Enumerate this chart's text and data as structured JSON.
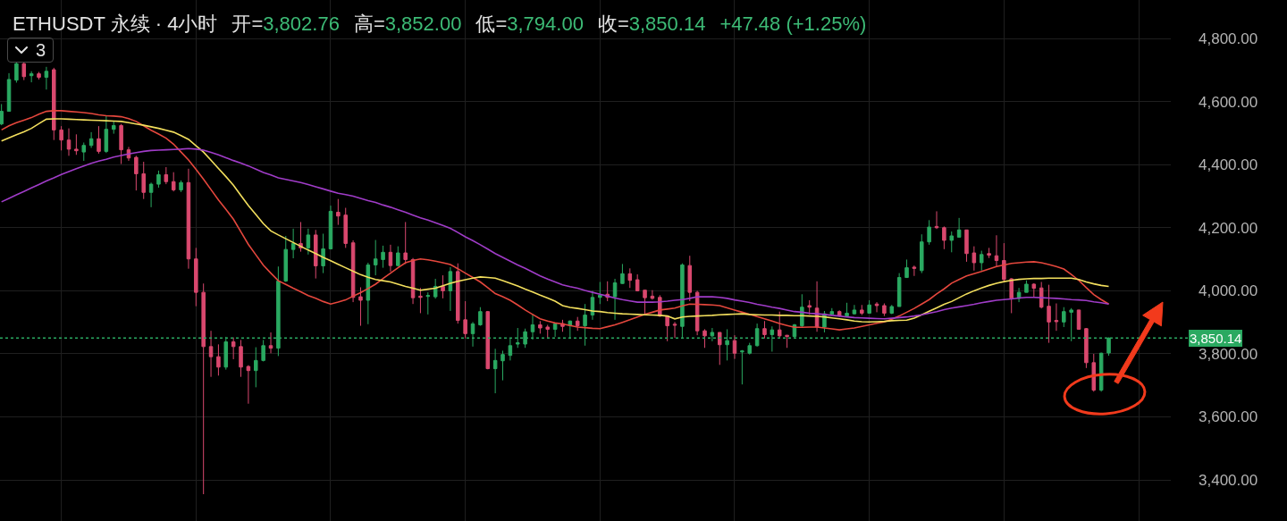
{
  "chart_data": {
    "type": "candlestick",
    "title": "ETHUSDT 永续 · 4小时",
    "annotations": [
      "开=3,802.76",
      "高=3,852.00",
      "低=3,794.00",
      "收=3,850.14",
      "+47.48 (+1.25%)",
      "3"
    ],
    "categories": [
      null,
      null,
      null,
      null,
      null,
      null,
      null,
      null,
      null,
      null,
      null,
      null,
      null,
      null,
      null,
      null,
      null,
      null,
      null,
      null,
      null,
      null,
      null,
      null,
      null,
      null,
      null,
      null,
      null,
      null,
      null,
      null,
      null,
      null,
      null,
      null,
      null,
      null,
      null,
      null,
      null,
      null,
      null,
      null,
      null,
      null,
      null,
      null,
      null,
      null,
      null,
      null,
      null,
      null,
      null,
      null,
      null,
      null,
      null,
      null,
      null,
      null,
      null,
      null,
      null,
      null,
      null,
      null,
      null,
      null,
      null,
      null,
      null,
      null,
      null,
      null,
      null,
      null,
      null,
      null,
      null,
      null,
      null,
      null,
      null,
      null,
      null,
      null,
      null,
      null,
      null,
      null,
      null,
      null,
      null,
      null,
      null,
      null,
      null,
      null,
      null,
      null,
      null,
      null,
      null,
      null,
      null,
      null,
      null,
      null,
      null,
      null,
      null,
      null,
      null,
      null,
      null,
      null,
      null,
      null,
      null,
      null,
      null,
      null,
      null,
      null,
      null,
      null,
      null,
      null,
      null,
      null,
      null,
      null,
      null,
      null,
      null,
      null,
      null,
      null,
      null,
      null,
      null,
      null,
      null,
      null,
      null,
      null,
      null
    ],
    "ohlc": [
      [
        4529,
        4592,
        4525,
        4569
      ],
      [
        4569,
        4690,
        4569,
        4670
      ],
      [
        4668,
        4724,
        4660,
        4720
      ],
      [
        4720,
        4724,
        4668,
        4679
      ],
      [
        4682,
        4696,
        4661,
        4688
      ],
      [
        4688,
        4694,
        4670,
        4677
      ],
      [
        4677,
        4710,
        4638,
        4696
      ],
      [
        4701,
        4707,
        4478,
        4510
      ],
      [
        4510,
        4522,
        4445,
        4478
      ],
      [
        4478,
        4515,
        4428,
        4449
      ],
      [
        4449,
        4496,
        4431,
        4444
      ],
      [
        4440,
        4470,
        4412,
        4461
      ],
      [
        4461,
        4503,
        4453,
        4482
      ],
      [
        4482,
        4522,
        4435,
        4442
      ],
      [
        4442,
        4555,
        4437,
        4512
      ],
      [
        4512,
        4538,
        4498,
        4524
      ],
      [
        4524,
        4529,
        4402,
        4447
      ],
      [
        4447,
        4456,
        4412,
        4421
      ],
      [
        4423,
        4428,
        4318,
        4371
      ],
      [
        4371,
        4409,
        4291,
        4312
      ],
      [
        4312,
        4343,
        4265,
        4338
      ],
      [
        4338,
        4381,
        4327,
        4368
      ],
      [
        4368,
        4392,
        4338,
        4346
      ],
      [
        4346,
        4376,
        4315,
        4320
      ],
      [
        4320,
        4350,
        4313,
        4343
      ],
      [
        4343,
        4387,
        4070,
        4101
      ],
      [
        4101,
        4136,
        3951,
        3995
      ],
      [
        3995,
        4023,
        3355,
        3823
      ],
      [
        3823,
        3873,
        3727,
        3791
      ],
      [
        3791,
        3830,
        3731,
        3758
      ],
      [
        3758,
        3854,
        3750,
        3838
      ],
      [
        3838,
        3852,
        3783,
        3823
      ],
      [
        3823,
        3844,
        3727,
        3758
      ],
      [
        3760,
        3764,
        3642,
        3747
      ],
      [
        3747,
        3821,
        3694,
        3779
      ],
      [
        3779,
        3844,
        3776,
        3826
      ],
      [
        3826,
        3868,
        3802,
        3818
      ],
      [
        3818,
        4077,
        3793,
        4031
      ],
      [
        4031,
        4174,
        4028,
        4131
      ],
      [
        4131,
        4197,
        4103,
        4150
      ],
      [
        4150,
        4218,
        4124,
        4136
      ],
      [
        4136,
        4197,
        4115,
        4177
      ],
      [
        4177,
        4193,
        4039,
        4079
      ],
      [
        4079,
        4181,
        4056,
        4133
      ],
      [
        4133,
        4270,
        4131,
        4252
      ],
      [
        4249,
        4291,
        4209,
        4237
      ],
      [
        4240,
        4263,
        4136,
        4150
      ],
      [
        4152,
        4160,
        3964,
        3979
      ],
      [
        3981,
        4011,
        3889,
        3970
      ],
      [
        3970,
        4089,
        3894,
        4082
      ],
      [
        4082,
        4161,
        4049,
        4101
      ],
      [
        4099,
        4143,
        4073,
        4122
      ],
      [
        4122,
        4146,
        4061,
        4080
      ],
      [
        4080,
        4141,
        4077,
        4120
      ],
      [
        4120,
        4218,
        4085,
        4099
      ],
      [
        4099,
        4104,
        3958,
        3978
      ],
      [
        3983,
        4009,
        3929,
        3979
      ],
      [
        3982,
        3995,
        3925,
        3985
      ],
      [
        3981,
        4038,
        3975,
        4014
      ],
      [
        4014,
        4049,
        3976,
        4000
      ],
      [
        4000,
        4075,
        3936,
        4061
      ],
      [
        4061,
        4087,
        3896,
        3906
      ],
      [
        3908,
        3967,
        3849,
        3864
      ],
      [
        3864,
        3901,
        3823,
        3895
      ],
      [
        3892,
        3948,
        3889,
        3934
      ],
      [
        3934,
        3936,
        3751,
        3753
      ],
      [
        3753,
        3816,
        3675,
        3779
      ],
      [
        3778,
        3810,
        3716,
        3798
      ],
      [
        3795,
        3849,
        3779,
        3826
      ],
      [
        3831,
        3882,
        3819,
        3835
      ],
      [
        3831,
        3880,
        3819,
        3870
      ],
      [
        3870,
        3927,
        3845,
        3892
      ],
      [
        3892,
        3904,
        3864,
        3882
      ],
      [
        3885,
        3892,
        3851,
        3878
      ],
      [
        3878,
        3896,
        3854,
        3895
      ],
      [
        3896,
        3908,
        3870,
        3887
      ],
      [
        3889,
        3906,
        3851,
        3904
      ],
      [
        3904,
        3917,
        3873,
        3889
      ],
      [
        3889,
        3958,
        3826,
        3923
      ],
      [
        3923,
        4000,
        3908,
        3979
      ],
      [
        3979,
        4028,
        3958,
        3986
      ],
      [
        3989,
        4030,
        3967,
        3979
      ],
      [
        3981,
        4038,
        3908,
        4025
      ],
      [
        4023,
        4085,
        4022,
        4054
      ],
      [
        4054,
        4071,
        4009,
        4033
      ],
      [
        4035,
        4052,
        3998,
        4000
      ],
      [
        4002,
        4002,
        3927,
        3978
      ],
      [
        3983,
        4002,
        3972,
        3976
      ],
      [
        3979,
        3986,
        3917,
        3920
      ],
      [
        3920,
        3922,
        3840,
        3889
      ],
      [
        3894,
        3901,
        3851,
        3891
      ],
      [
        3887,
        4087,
        3851,
        4082
      ],
      [
        4080,
        4111,
        3967,
        3995
      ],
      [
        3995,
        4000,
        3859,
        3873
      ],
      [
        3873,
        3878,
        3819,
        3857
      ],
      [
        3857,
        3882,
        3840,
        3868
      ],
      [
        3868,
        3868,
        3765,
        3829
      ],
      [
        3829,
        3878,
        3779,
        3842
      ],
      [
        3842,
        3859,
        3784,
        3802
      ],
      [
        3806,
        3812,
        3703,
        3809
      ],
      [
        3802,
        3835,
        3798,
        3826
      ],
      [
        3826,
        3896,
        3823,
        3880
      ],
      [
        3880,
        3904,
        3849,
        3861
      ],
      [
        3861,
        3887,
        3807,
        3876
      ],
      [
        3876,
        3934,
        3848,
        3857
      ],
      [
        3859,
        3859,
        3819,
        3855
      ],
      [
        3855,
        3895,
        3850,
        3892
      ],
      [
        3889,
        3989,
        3885,
        3948
      ],
      [
        3953,
        3970,
        3925,
        3948
      ],
      [
        3945,
        4030,
        3870,
        3885
      ],
      [
        3885,
        3936,
        3868,
        3927
      ],
      [
        3925,
        3945,
        3923,
        3934
      ],
      [
        3934,
        3938,
        3917,
        3920
      ],
      [
        3920,
        3962,
        3920,
        3929
      ],
      [
        3927,
        3955,
        3925,
        3939
      ],
      [
        3939,
        3955,
        3923,
        3929
      ],
      [
        3929,
        3970,
        3929,
        3955
      ],
      [
        3958,
        3964,
        3932,
        3953
      ],
      [
        3953,
        3960,
        3920,
        3929
      ],
      [
        3929,
        3955,
        3926,
        3950
      ],
      [
        3950,
        4056,
        3950,
        4042
      ],
      [
        4042,
        4099,
        4042,
        4073
      ],
      [
        4075,
        4080,
        4047,
        4071
      ],
      [
        4064,
        4179,
        4056,
        4155
      ],
      [
        4155,
        4224,
        4146,
        4202
      ],
      [
        4204,
        4252,
        4196,
        4200
      ],
      [
        4200,
        4204,
        4132,
        4160
      ],
      [
        4160,
        4188,
        4122,
        4174
      ],
      [
        4170,
        4231,
        4169,
        4193
      ],
      [
        4193,
        4193,
        4092,
        4118
      ],
      [
        4120,
        4141,
        4064,
        4089
      ],
      [
        4089,
        4127,
        4064,
        4115
      ],
      [
        4118,
        4136,
        4104,
        4113
      ],
      [
        4111,
        4176,
        4075,
        4096
      ],
      [
        4096,
        4151,
        4030,
        4036
      ],
      [
        4038,
        4040,
        3929,
        3976
      ],
      [
        3976,
        4009,
        3964,
        3995
      ],
      [
        3995,
        4033,
        3995,
        4021
      ],
      [
        4021,
        4024,
        3981,
        4008
      ],
      [
        4009,
        4028,
        3944,
        3948
      ],
      [
        3951,
        4019,
        3835,
        3901
      ],
      [
        3906,
        3960,
        3873,
        3902
      ],
      [
        3901,
        3948,
        3885,
        3934
      ],
      [
        3932,
        3945,
        3840,
        3939
      ],
      [
        3939,
        3940,
        3876,
        3878
      ],
      [
        3880,
        3882,
        3755,
        3772
      ],
      [
        3772,
        3800,
        3680,
        3685
      ],
      [
        3685,
        3804,
        3680,
        3802
      ],
      [
        3802.76,
        3852.0,
        3794.0,
        3850.14
      ]
    ],
    "colors": [
      "#2aa961",
      "#2aa961",
      "#2aa961",
      "#d9486e",
      "#2aa961",
      "#d9486e",
      "#2aa961",
      "#d9486e",
      "#d9486e",
      "#d9486e",
      "#d9486e",
      "#2aa961",
      "#2aa961",
      "#d9486e",
      "#2aa961",
      "#2aa961",
      "#d9486e",
      "#d9486e",
      "#d9486e",
      "#d9486e",
      "#2aa961",
      "#2aa961",
      "#d9486e",
      "#d9486e",
      "#2aa961",
      "#d9486e",
      "#d9486e",
      "#d9486e",
      "#d9486e",
      "#d9486e",
      "#2aa961",
      "#d9486e",
      "#d9486e",
      "#d9486e",
      "#2aa961",
      "#2aa961",
      "#d9486e",
      "#2aa961",
      "#2aa961",
      "#2aa961",
      "#d9486e",
      "#2aa961",
      "#d9486e",
      "#2aa961",
      "#2aa961",
      "#d9486e",
      "#d9486e",
      "#d9486e",
      "#d9486e",
      "#2aa961",
      "#2aa961",
      "#2aa961",
      "#d9486e",
      "#2aa961",
      "#d9486e",
      "#d9486e",
      "#d9486e",
      "#2aa961",
      "#2aa961",
      "#d9486e",
      "#2aa961",
      "#d9486e",
      "#d9486e",
      "#2aa961",
      "#2aa961",
      "#d9486e",
      "#2aa961",
      "#2aa961",
      "#2aa961",
      "#2aa961",
      "#2aa961",
      "#2aa961",
      "#d9486e",
      "#d9486e",
      "#2aa961",
      "#d9486e",
      "#2aa961",
      "#d9486e",
      "#2aa961",
      "#2aa961",
      "#2aa961",
      "#d9486e",
      "#2aa961",
      "#2aa961",
      "#d9486e",
      "#d9486e",
      "#d9486e",
      "#d9486e",
      "#d9486e",
      "#d9486e",
      "#d9486e",
      "#2aa961",
      "#d9486e",
      "#d9486e",
      "#d9486e",
      "#2aa961",
      "#d9486e",
      "#2aa961",
      "#d9486e",
      "#2aa961",
      "#2aa961",
      "#2aa961",
      "#d9486e",
      "#2aa961",
      "#d9486e",
      "#d9486e",
      "#2aa961",
      "#2aa961",
      "#d9486e",
      "#d9486e",
      "#2aa961",
      "#2aa961",
      "#d9486e",
      "#2aa961",
      "#2aa961",
      "#d9486e",
      "#2aa961",
      "#d9486e",
      "#d9486e",
      "#2aa961",
      "#2aa961",
      "#2aa961",
      "#d9486e",
      "#2aa961",
      "#2aa961",
      "#d9486e",
      "#d9486e",
      "#2aa961",
      "#2aa961",
      "#d9486e",
      "#d9486e",
      "#2aa961",
      "#d9486e",
      "#d9486e",
      "#d9486e",
      "#d9486e",
      "#2aa961",
      "#2aa961",
      "#d9486e",
      "#d9486e",
      "#d9486e",
      "#d9486e",
      "#2aa961",
      "#2aa961",
      "#d9486e",
      "#d9486e",
      "#d9486e",
      "#2aa961",
      "#2aa961"
    ],
    "series": [
      {
        "type": "line",
        "color": "#e5473d",
        "values": [
          4510,
          4523,
          4533,
          4541,
          4549,
          4560,
          4569,
          4571,
          4571,
          4569,
          4567,
          4565,
          4562,
          4558,
          4555,
          4554,
          4552,
          4546,
          4537,
          4523,
          4509,
          4497,
          4484,
          4465,
          4440,
          4415,
          4385,
          4354,
          4321,
          4288,
          4258,
          4227,
          4187,
          4147,
          4114,
          4081,
          4056,
          4032,
          4020,
          4008,
          3997,
          3985,
          3976,
          3966,
          3958,
          3964,
          3971,
          3983,
          3994,
          4007,
          4021,
          4039,
          4056,
          4073,
          4089,
          4096,
          4101,
          4098,
          4094,
          4089,
          4083,
          4070,
          4056,
          4042,
          4028,
          4010,
          3991,
          3981,
          3970,
          3955,
          3939,
          3925,
          3911,
          3904,
          3898,
          3895,
          3890,
          3885,
          3883,
          3881,
          3880,
          3886,
          3892,
          3900,
          3908,
          3917,
          3925,
          3932,
          3939,
          3942,
          3945,
          3952,
          3958,
          3957,
          3956,
          3955,
          3953,
          3946,
          3939,
          3932,
          3925,
          3918,
          3911,
          3904,
          3896,
          3890,
          3884,
          3884,
          3885,
          3885,
          3882,
          3879,
          3876,
          3879,
          3882,
          3887,
          3892,
          3897,
          3901,
          3910,
          3920,
          3932,
          3944,
          3958,
          3972,
          3990,
          4006,
          4024,
          4036,
          4047,
          4054,
          4061,
          4069,
          4077,
          4082,
          4087,
          4089,
          4091,
          4092,
          4089,
          4083,
          4077,
          4069,
          4052,
          4033,
          4010,
          3988,
          3972,
          3958
        ]
      },
      {
        "type": "line",
        "color": "#f3df5d",
        "values": [
          4475,
          4485,
          4495,
          4504,
          4515,
          4530,
          4544,
          4545,
          4545,
          4544,
          4543,
          4542,
          4541,
          4540,
          4539,
          4538,
          4537,
          4533,
          4529,
          4525,
          4520,
          4515,
          4509,
          4503,
          4492,
          4480,
          4460,
          4440,
          4414,
          4388,
          4362,
          4335,
          4302,
          4270,
          4242,
          4213,
          4190,
          4177,
          4165,
          4153,
          4141,
          4129,
          4118,
          4106,
          4095,
          4084,
          4073,
          4062,
          4051,
          4043,
          4036,
          4032,
          4028,
          4021,
          4014,
          4008,
          4002,
          4005,
          4008,
          4016,
          4024,
          4030,
          4035,
          4040,
          4044,
          4042,
          4040,
          4032,
          4024,
          4015,
          4005,
          3996,
          3986,
          3977,
          3967,
          3953,
          3947,
          3944,
          3940,
          3936,
          3934,
          3931,
          3929,
          3927,
          3926,
          3925,
          3924,
          3923,
          3922,
          3920,
          3911,
          3917,
          3919,
          3920,
          3921,
          3922,
          3924,
          3925,
          3926,
          3927,
          3925,
          3924,
          3923,
          3923,
          3922,
          3922,
          3921,
          3921,
          3920,
          3919,
          3917,
          3914,
          3911,
          3908,
          3904,
          3902,
          3901,
          3902,
          3903,
          3905,
          3906,
          3907,
          3913,
          3924,
          3935,
          3946,
          3957,
          3966,
          3978,
          3990,
          4000,
          4009,
          4017,
          4024,
          4029,
          4033,
          4036,
          4038,
          4039,
          4039,
          4040,
          4040,
          4040,
          4040,
          4036,
          4028,
          4022,
          4017,
          4014
        ]
      },
      {
        "type": "line",
        "color": "#a03cc8",
        "values": [
          4282,
          4293,
          4304,
          4315,
          4326,
          4337,
          4348,
          4358,
          4369,
          4378,
          4387,
          4396,
          4404,
          4411,
          4417,
          4424,
          4429,
          4434,
          4438,
          4442,
          4445,
          4446,
          4447,
          4448,
          4449,
          4451,
          4449,
          4446,
          4439,
          4431,
          4422,
          4413,
          4405,
          4396,
          4386,
          4375,
          4367,
          4358,
          4353,
          4348,
          4343,
          4337,
          4330,
          4323,
          4316,
          4309,
          4305,
          4300,
          4293,
          4286,
          4280,
          4272,
          4265,
          4257,
          4249,
          4240,
          4231,
          4224,
          4216,
          4207,
          4198,
          4185,
          4171,
          4159,
          4146,
          4132,
          4118,
          4106,
          4094,
          4082,
          4071,
          4059,
          4047,
          4037,
          4028,
          4019,
          4013,
          4008,
          4001,
          3995,
          3989,
          3983,
          3977,
          3972,
          3968,
          3964,
          3964,
          3964,
          3965,
          3967,
          3970,
          3972,
          3976,
          3981,
          3981,
          3981,
          3979,
          3976,
          3971,
          3967,
          3963,
          3957,
          3953,
          3948,
          3944,
          3939,
          3934,
          3932,
          3929,
          3927,
          3925,
          3922,
          3920,
          3917,
          3915,
          3914,
          3913,
          3912,
          3911,
          3913,
          3915,
          3917,
          3920,
          3924,
          3929,
          3934,
          3940,
          3945,
          3949,
          3953,
          3957,
          3962,
          3966,
          3970,
          3972,
          3974,
          3977,
          3979,
          3979,
          3978,
          3977,
          3976,
          3974,
          3972,
          3971,
          3969,
          3965,
          3962,
          3958
        ]
      }
    ],
    "ylim": [
      3270,
      4922
    ],
    "yticks": [
      {
        "value": 3400,
        "label": "3,400.00"
      },
      {
        "value": 3600,
        "label": "3,600.00"
      },
      {
        "value": 3800,
        "label": "3,800.00"
      },
      {
        "value": 4000,
        "label": "4,000.00"
      },
      {
        "value": 4200,
        "label": "4,200.00"
      },
      {
        "value": 4400,
        "label": "4,400.00"
      },
      {
        "value": 4600,
        "label": "4,600.00"
      },
      {
        "value": 4800,
        "label": "4,800.00"
      }
    ],
    "ref_lines": [
      {
        "axis": "y",
        "value": 3850.14,
        "label": "3,850.14",
        "color": "#2aa961",
        "line_style": "dotted"
      }
    ],
    "grid": true,
    "tick_labels": "y"
  }
}
